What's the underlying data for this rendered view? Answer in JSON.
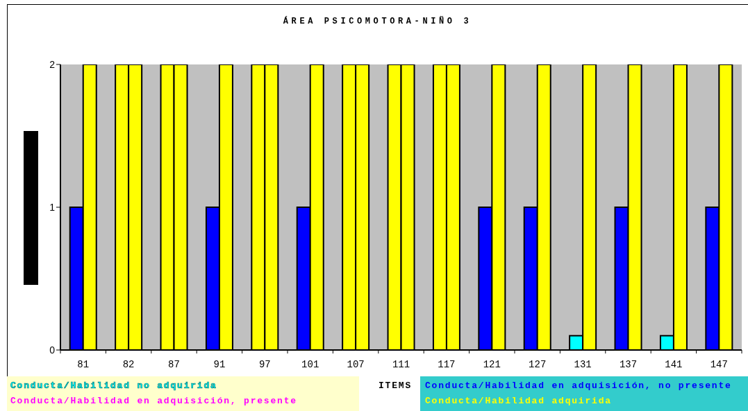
{
  "chart_data": {
    "type": "bar",
    "title": "ÁREA PSICOMOTORA-NIÑO 3",
    "xlabel": "ITEMS",
    "categories": [
      "81",
      "82",
      "87",
      "91",
      "97",
      "101",
      "107",
      "111",
      "117",
      "121",
      "127",
      "131",
      "137",
      "141",
      "147"
    ],
    "series": [
      {
        "name": "Conducta/Habilidad no adquirida",
        "color": "#00ffff",
        "values": [
          null,
          null,
          null,
          null,
          null,
          null,
          null,
          null,
          null,
          null,
          null,
          0.1,
          null,
          0.1,
          null
        ]
      },
      {
        "name": "Conducta/Habilidad en adquisición, presente",
        "color": "#ff00ff",
        "values": [
          null,
          null,
          null,
          null,
          null,
          null,
          null,
          null,
          null,
          null,
          null,
          null,
          null,
          null,
          null
        ]
      },
      {
        "name": "Conducta/Habilidad en adquisición, no presente",
        "color": "#0000ff",
        "values": [
          1,
          null,
          null,
          1,
          null,
          1,
          null,
          null,
          null,
          1,
          1,
          null,
          1,
          null,
          1
        ]
      },
      {
        "name": "Conducta/Habilidad adquirida",
        "color": "#ffff00",
        "values": [
          null,
          2,
          2,
          null,
          2,
          null,
          2,
          2,
          2,
          null,
          null,
          null,
          null,
          null,
          null
        ]
      },
      {
        "color": "#ffff00",
        "values": [
          2,
          2,
          2,
          2,
          2,
          2,
          2,
          2,
          2,
          2,
          2,
          2,
          2,
          2,
          2
        ]
      }
    ],
    "ylim": [
      0,
      2
    ],
    "yticks": [
      0,
      1,
      2
    ],
    "grid": false,
    "legend": "bottom"
  }
}
